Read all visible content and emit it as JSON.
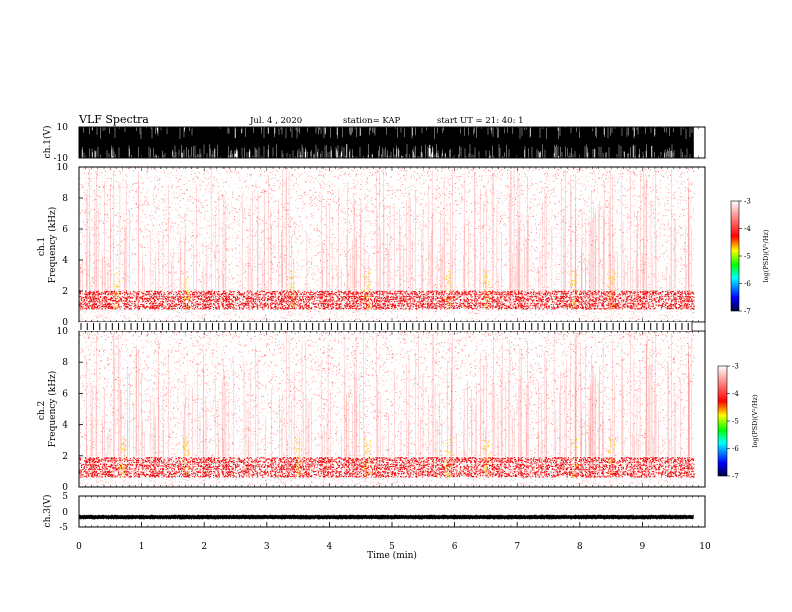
{
  "header": {
    "title": "VLF Spectra",
    "date": "Jul. 4 , 2020",
    "station": "station= KAP",
    "start_ut": "start UT = 21: 40: 1"
  },
  "chart_data": [
    {
      "type": "line",
      "panel": "ch1-waveform",
      "ylabel": "ch.1(V)",
      "ylim": [
        -10,
        10
      ],
      "yticks": [
        "10",
        "-10"
      ],
      "xlim": [
        0,
        10
      ],
      "description_values": {
        "amplitude_range": [
          -10,
          10
        ]
      }
    },
    {
      "type": "heatmap",
      "panel": "ch1-spectrogram",
      "ylabel": "ch.1\nFrequency (kHz)",
      "ylim": [
        0,
        10
      ],
      "yticks": [
        "0",
        "2",
        "4",
        "6",
        "8",
        "10"
      ],
      "xlim": [
        0,
        10
      ],
      "colorbar": {
        "label": "log(PSD)(V²/Hz)",
        "range": [
          -7,
          -3
        ],
        "ticks": [
          "-3",
          "-4",
          "-5",
          "-6",
          "-7"
        ]
      },
      "band_kHz": [
        0.8,
        2.0
      ],
      "active_minutes": [
        0.6,
        1.7,
        3.4,
        4.6,
        5.9,
        6.5,
        7.9,
        8.5
      ]
    },
    {
      "type": "heatmap",
      "panel": "ch2-spectrogram",
      "ylabel": "ch.2\nFrequency (kHz)",
      "ylim": [
        0,
        10
      ],
      "yticks": [
        "0",
        "2",
        "4",
        "6",
        "8",
        "10"
      ],
      "xlim": [
        0,
        10
      ],
      "colorbar": {
        "label": "log(PSD)(V²/Hz)",
        "range": [
          -7,
          -3
        ],
        "ticks": [
          "-3",
          "-4",
          "-5",
          "-6",
          "-7"
        ]
      },
      "band_kHz": [
        0.6,
        1.9
      ],
      "active_minutes": [
        0.7,
        1.7,
        3.5,
        4.6,
        5.9,
        6.5,
        7.9,
        8.5
      ]
    },
    {
      "type": "line",
      "panel": "ch3-waveform",
      "ylabel": "ch.3(V)",
      "ylim": [
        -5,
        5
      ],
      "yticks": [
        "5",
        "0",
        "-5"
      ],
      "xlim": [
        0,
        10
      ],
      "xlabel": "Time (min)",
      "xticks": [
        "0",
        "1",
        "2",
        "3",
        "4",
        "5",
        "6",
        "7",
        "8",
        "9",
        "10"
      ],
      "level_V": -1.8,
      "data_end_min": 9.82
    }
  ],
  "colors": {
    "speckle_light": "#ffb6b6",
    "speckle_mid": "#ff7272",
    "speckle_strong": "#ee1010",
    "hot": "#ffcc00",
    "colorbar_stops": [
      "#000040",
      "#0000ff",
      "#00ffff",
      "#00ff00",
      "#ffff00",
      "#ff0000",
      "#ffffff"
    ]
  }
}
